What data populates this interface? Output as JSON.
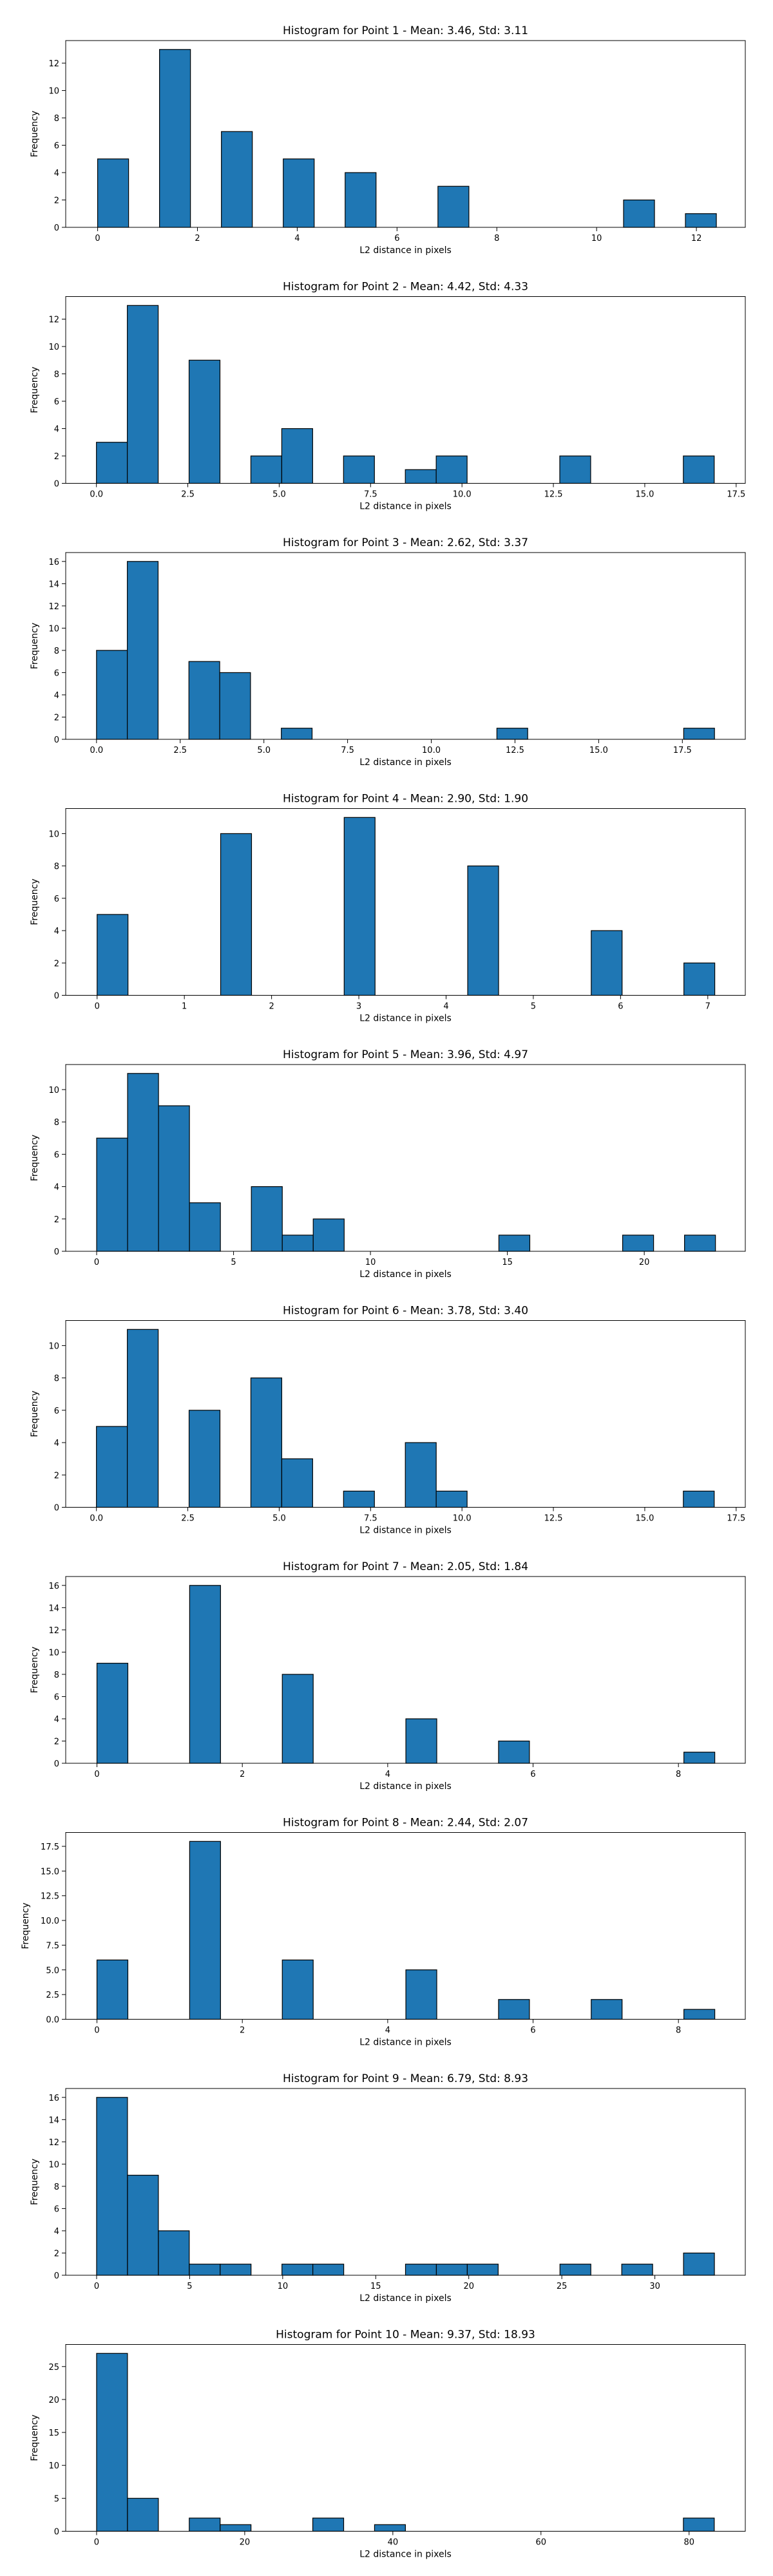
{
  "chart_data": [
    {
      "type": "bar",
      "title": "Histogram for Point 1 - Mean: 3.46, Std: 3.11",
      "xlabel": "L2 distance in pixels",
      "ylabel": "Frequency",
      "xticks": [
        0,
        2,
        4,
        6,
        8,
        10,
        12
      ],
      "xtick_labels": [
        "0",
        "2",
        "4",
        "6",
        "8",
        "10",
        "12"
      ],
      "yticks": [
        0,
        2,
        4,
        6,
        8,
        10,
        12
      ],
      "yticks_labels": [
        "0",
        "2",
        "4",
        "6",
        "8",
        "10",
        "12"
      ],
      "xlim": [
        -0.64,
        12.98
      ],
      "ylim": [
        0,
        13.65
      ],
      "bars": [
        {
          "x0": 0.0,
          "x1": 0.62,
          "value": 5
        },
        {
          "x0": 1.24,
          "x1": 1.86,
          "value": 13
        },
        {
          "x0": 2.48,
          "x1": 3.1,
          "value": 7
        },
        {
          "x0": 3.72,
          "x1": 4.34,
          "value": 5
        },
        {
          "x0": 4.96,
          "x1": 5.58,
          "value": 4
        },
        {
          "x0": 6.82,
          "x1": 7.44,
          "value": 3
        },
        {
          "x0": 10.54,
          "x1": 11.16,
          "value": 2
        },
        {
          "x0": 11.78,
          "x1": 12.4,
          "value": 1
        }
      ]
    },
    {
      "type": "bar",
      "title": "Histogram for Point 2 - Mean: 4.42, Std: 4.33",
      "xlabel": "L2 distance in pixels",
      "ylabel": "Frequency",
      "xticks": [
        0,
        2.5,
        5,
        7.5,
        10,
        12.5,
        15,
        17.5
      ],
      "xtick_labels": [
        "0.0",
        "2.5",
        "5.0",
        "7.5",
        "10.0",
        "12.5",
        "15.0",
        "17.5"
      ],
      "yticks": [
        0,
        2,
        4,
        6,
        8,
        10,
        12
      ],
      "yticks_labels": [
        "0",
        "2",
        "4",
        "6",
        "8",
        "10",
        "12"
      ],
      "xlim": [
        -0.84,
        17.75
      ],
      "ylim": [
        0,
        13.65
      ],
      "bars": [
        {
          "x0": 0.0,
          "x1": 0.845,
          "value": 3
        },
        {
          "x0": 0.845,
          "x1": 1.69,
          "value": 13
        },
        {
          "x0": 2.535,
          "x1": 3.38,
          "value": 9
        },
        {
          "x0": 4.225,
          "x1": 5.07,
          "value": 2
        },
        {
          "x0": 5.07,
          "x1": 5.915,
          "value": 4
        },
        {
          "x0": 6.76,
          "x1": 7.605,
          "value": 2
        },
        {
          "x0": 8.45,
          "x1": 9.295,
          "value": 1
        },
        {
          "x0": 9.295,
          "x1": 10.14,
          "value": 2
        },
        {
          "x0": 12.675,
          "x1": 13.52,
          "value": 2
        },
        {
          "x0": 16.055,
          "x1": 16.9,
          "value": 2
        }
      ]
    },
    {
      "type": "bar",
      "title": "Histogram for Point 3 - Mean: 2.62, Std: 3.37",
      "xlabel": "L2 distance in pixels",
      "ylabel": "Frequency",
      "xticks": [
        0,
        2.5,
        5,
        7.5,
        10,
        12.5,
        15,
        17.5
      ],
      "xtick_labels": [
        "0.0",
        "2.5",
        "5.0",
        "7.5",
        "10.0",
        "12.5",
        "15.0",
        "17.5"
      ],
      "yticks": [
        0,
        2,
        4,
        6,
        8,
        10,
        12,
        14,
        16
      ],
      "yticks_labels": [
        "0",
        "2",
        "4",
        "6",
        "8",
        "10",
        "12",
        "14",
        "16"
      ],
      "xlim": [
        -0.92,
        19.38
      ],
      "ylim": [
        0,
        16.8
      ],
      "bars": [
        {
          "x0": 0.0,
          "x1": 0.92,
          "value": 8
        },
        {
          "x0": 0.92,
          "x1": 1.84,
          "value": 16
        },
        {
          "x0": 2.76,
          "x1": 3.68,
          "value": 7
        },
        {
          "x0": 3.68,
          "x1": 4.6,
          "value": 6
        },
        {
          "x0": 5.52,
          "x1": 6.44,
          "value": 1
        },
        {
          "x0": 11.96,
          "x1": 12.88,
          "value": 1
        },
        {
          "x0": 17.54,
          "x1": 18.46,
          "value": 1
        }
      ]
    },
    {
      "type": "bar",
      "title": "Histogram for Point 4 - Mean: 2.90, Std: 1.90",
      "xlabel": "L2 distance in pixels",
      "ylabel": "Frequency",
      "xticks": [
        0,
        1,
        2,
        3,
        4,
        5,
        6,
        7
      ],
      "xtick_labels": [
        "0",
        "1",
        "2",
        "3",
        "4",
        "5",
        "6",
        "7"
      ],
      "yticks": [
        0,
        2,
        4,
        6,
        8,
        10
      ],
      "yticks_labels": [
        "0",
        "2",
        "4",
        "6",
        "8",
        "10"
      ],
      "xlim": [
        -0.36,
        7.43
      ],
      "ylim": [
        0,
        11.55
      ],
      "bars": [
        {
          "x0": 0.0,
          "x1": 0.354,
          "value": 5
        },
        {
          "x0": 1.416,
          "x1": 1.77,
          "value": 10
        },
        {
          "x0": 2.832,
          "x1": 3.186,
          "value": 11
        },
        {
          "x0": 4.248,
          "x1": 4.602,
          "value": 8
        },
        {
          "x0": 5.664,
          "x1": 6.018,
          "value": 4
        },
        {
          "x0": 6.726,
          "x1": 7.08,
          "value": 2
        }
      ]
    },
    {
      "type": "bar",
      "title": "Histogram for Point 5 - Mean: 3.96, Std: 4.97",
      "xlabel": "L2 distance in pixels",
      "ylabel": "Frequency",
      "xticks": [
        0,
        5,
        10,
        15,
        20
      ],
      "xtick_labels": [
        "0",
        "5",
        "10",
        "15",
        "20"
      ],
      "yticks": [
        0,
        2,
        4,
        6,
        8,
        10
      ],
      "yticks_labels": [
        "0",
        "2",
        "4",
        "6",
        "8",
        "10"
      ],
      "xlim": [
        -1.13,
        23.69
      ],
      "ylim": [
        0,
        11.55
      ],
      "bars": [
        {
          "x0": 0.0,
          "x1": 1.13,
          "value": 7
        },
        {
          "x0": 1.13,
          "x1": 2.26,
          "value": 11
        },
        {
          "x0": 2.26,
          "x1": 3.39,
          "value": 9
        },
        {
          "x0": 3.39,
          "x1": 4.52,
          "value": 3
        },
        {
          "x0": 5.65,
          "x1": 6.78,
          "value": 4
        },
        {
          "x0": 6.78,
          "x1": 7.91,
          "value": 1
        },
        {
          "x0": 7.91,
          "x1": 9.04,
          "value": 2
        },
        {
          "x0": 14.69,
          "x1": 15.82,
          "value": 1
        },
        {
          "x0": 19.21,
          "x1": 20.34,
          "value": 1
        },
        {
          "x0": 21.47,
          "x1": 22.6,
          "value": 1
        }
      ]
    },
    {
      "type": "bar",
      "title": "Histogram for Point 6 - Mean: 3.78, Std: 3.40",
      "xlabel": "L2 distance in pixels",
      "ylabel": "Frequency",
      "xticks": [
        0,
        2.5,
        5,
        7.5,
        10,
        12.5,
        15,
        17.5
      ],
      "xtick_labels": [
        "0.0",
        "2.5",
        "5.0",
        "7.5",
        "10.0",
        "12.5",
        "15.0",
        "17.5"
      ],
      "yticks": [
        0,
        2,
        4,
        6,
        8,
        10
      ],
      "yticks_labels": [
        "0",
        "2",
        "4",
        "6",
        "8",
        "10"
      ],
      "xlim": [
        -0.84,
        17.75
      ],
      "ylim": [
        0,
        11.55
      ],
      "bars": [
        {
          "x0": 0.0,
          "x1": 0.845,
          "value": 5
        },
        {
          "x0": 0.845,
          "x1": 1.69,
          "value": 11
        },
        {
          "x0": 2.535,
          "x1": 3.38,
          "value": 6
        },
        {
          "x0": 4.225,
          "x1": 5.07,
          "value": 8
        },
        {
          "x0": 5.07,
          "x1": 5.915,
          "value": 3
        },
        {
          "x0": 6.76,
          "x1": 7.605,
          "value": 1
        },
        {
          "x0": 8.45,
          "x1": 9.295,
          "value": 4
        },
        {
          "x0": 9.295,
          "x1": 10.14,
          "value": 1
        },
        {
          "x0": 16.055,
          "x1": 16.9,
          "value": 1
        }
      ]
    },
    {
      "type": "bar",
      "title": "Histogram for Point 7 - Mean: 2.05, Std: 1.84",
      "xlabel": "L2 distance in pixels",
      "ylabel": "Frequency",
      "xticks": [
        0,
        2,
        4,
        6,
        8
      ],
      "xtick_labels": [
        "0",
        "2",
        "4",
        "6",
        "8"
      ],
      "yticks": [
        0,
        2,
        4,
        6,
        8,
        10,
        12,
        14,
        16
      ],
      "yticks_labels": [
        "0",
        "2",
        "4",
        "6",
        "8",
        "10",
        "12",
        "14",
        "16"
      ],
      "xlim": [
        -0.43,
        8.92
      ],
      "ylim": [
        0,
        16.8
      ],
      "bars": [
        {
          "x0": 0.0,
          "x1": 0.425,
          "value": 9
        },
        {
          "x0": 1.275,
          "x1": 1.7,
          "value": 16
        },
        {
          "x0": 2.55,
          "x1": 2.975,
          "value": 8
        },
        {
          "x0": 4.25,
          "x1": 4.675,
          "value": 4
        },
        {
          "x0": 5.525,
          "x1": 5.95,
          "value": 2
        },
        {
          "x0": 8.075,
          "x1": 8.5,
          "value": 1
        }
      ]
    },
    {
      "type": "bar",
      "title": "Histogram for Point 8 - Mean: 2.44, Std: 2.07",
      "xlabel": "L2 distance in pixels",
      "ylabel": "Frequency",
      "xticks": [
        0,
        2,
        4,
        6,
        8
      ],
      "xtick_labels": [
        "0",
        "2",
        "4",
        "6",
        "8"
      ],
      "yticks": [
        0,
        2.5,
        5,
        7.5,
        10,
        12.5,
        15,
        17.5
      ],
      "yticks_labels": [
        "0.0",
        "2.5",
        "5.0",
        "7.5",
        "10.0",
        "12.5",
        "15.0",
        "17.5"
      ],
      "xlim": [
        -0.43,
        8.92
      ],
      "ylim": [
        0,
        18.9
      ],
      "bars": [
        {
          "x0": 0.0,
          "x1": 0.425,
          "value": 6
        },
        {
          "x0": 1.275,
          "x1": 1.7,
          "value": 18
        },
        {
          "x0": 2.55,
          "x1": 2.975,
          "value": 6
        },
        {
          "x0": 4.25,
          "x1": 4.675,
          "value": 5
        },
        {
          "x0": 5.525,
          "x1": 5.95,
          "value": 2
        },
        {
          "x0": 6.8,
          "x1": 7.225,
          "value": 2
        },
        {
          "x0": 8.075,
          "x1": 8.5,
          "value": 1
        }
      ]
    },
    {
      "type": "bar",
      "title": "Histogram for Point 9 - Mean: 6.79, Std: 8.93",
      "xlabel": "L2 distance in pixels",
      "ylabel": "Frequency",
      "xticks": [
        0,
        5,
        10,
        15,
        20,
        25,
        30
      ],
      "xtick_labels": [
        "0",
        "5",
        "10",
        "15",
        "20",
        "25",
        "30"
      ],
      "yticks": [
        0,
        2,
        4,
        6,
        8,
        10,
        12,
        14,
        16
      ],
      "yticks_labels": [
        "0",
        "2",
        "4",
        "6",
        "8",
        "10",
        "12",
        "14",
        "16"
      ],
      "xlim": [
        -1.66,
        34.86
      ],
      "ylim": [
        0,
        16.8
      ],
      "bars": [
        {
          "x0": 0.0,
          "x1": 1.66,
          "value": 16
        },
        {
          "x0": 1.66,
          "x1": 3.32,
          "value": 9
        },
        {
          "x0": 3.32,
          "x1": 4.98,
          "value": 4
        },
        {
          "x0": 4.98,
          "x1": 6.64,
          "value": 1
        },
        {
          "x0": 6.64,
          "x1": 8.3,
          "value": 1
        },
        {
          "x0": 9.96,
          "x1": 11.62,
          "value": 1
        },
        {
          "x0": 11.62,
          "x1": 13.28,
          "value": 1
        },
        {
          "x0": 16.6,
          "x1": 18.26,
          "value": 1
        },
        {
          "x0": 18.26,
          "x1": 19.92,
          "value": 1
        },
        {
          "x0": 19.92,
          "x1": 21.58,
          "value": 1
        },
        {
          "x0": 24.9,
          "x1": 26.56,
          "value": 1
        },
        {
          "x0": 28.22,
          "x1": 29.88,
          "value": 1
        },
        {
          "x0": 31.54,
          "x1": 33.2,
          "value": 2
        }
      ]
    },
    {
      "type": "bar",
      "title": "Histogram for Point 10 - Mean: 9.37, Std: 18.93",
      "xlabel": "L2 distance in pixels",
      "ylabel": "Frequency",
      "xticks": [
        0,
        20,
        40,
        60,
        80
      ],
      "xtick_labels": [
        "0",
        "20",
        "40",
        "60",
        "80"
      ],
      "yticks": [
        0,
        5,
        10,
        15,
        20,
        25
      ],
      "yticks_labels": [
        "0",
        "5",
        "10",
        "15",
        "20",
        "25"
      ],
      "xlim": [
        -4.17,
        87.59
      ],
      "ylim": [
        0,
        28.35
      ],
      "bars": [
        {
          "x0": 0.0,
          "x1": 4.17,
          "value": 27
        },
        {
          "x0": 4.17,
          "x1": 8.34,
          "value": 5
        },
        {
          "x0": 12.51,
          "x1": 16.68,
          "value": 2
        },
        {
          "x0": 16.68,
          "x1": 20.85,
          "value": 1
        },
        {
          "x0": 29.19,
          "x1": 33.36,
          "value": 2
        },
        {
          "x0": 37.53,
          "x1": 41.7,
          "value": 1
        },
        {
          "x0": 79.23,
          "x1": 83.4,
          "value": 2
        }
      ]
    }
  ]
}
